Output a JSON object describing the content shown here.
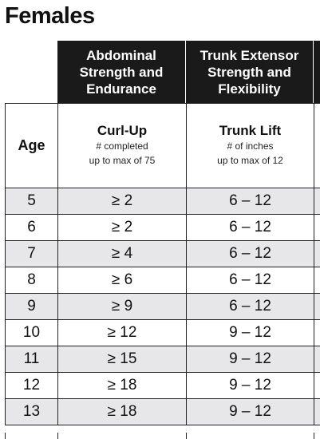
{
  "title": "Females",
  "columns": {
    "col1_header": "Abdominal Strength and Endurance",
    "col2_header": "Trunk Extensor Strength and Flexibility",
    "age_label": "Age",
    "col1_name": "Curl-Up",
    "col1_desc1": "# completed",
    "col1_desc2": "up to max of 75",
    "col2_name": "Trunk Lift",
    "col2_desc1": "# of inches",
    "col2_desc2": "up to max of 12"
  },
  "rows": [
    {
      "age": "5",
      "curl": "≥ 2",
      "trunk": "6 – 12"
    },
    {
      "age": "6",
      "curl": "≥ 2",
      "trunk": "6 – 12"
    },
    {
      "age": "7",
      "curl": "≥ 4",
      "trunk": "6 – 12"
    },
    {
      "age": "8",
      "curl": "≥ 6",
      "trunk": "6 – 12"
    },
    {
      "age": "9",
      "curl": "≥ 9",
      "trunk": "6 – 12"
    },
    {
      "age": "10",
      "curl": "≥ 12",
      "trunk": "9 – 12"
    },
    {
      "age": "11",
      "curl": "≥ 15",
      "trunk": "9 – 12"
    },
    {
      "age": "12",
      "curl": "≥ 18",
      "trunk": "9 – 12"
    },
    {
      "age": "13",
      "curl": "≥ 18",
      "trunk": "9 – 12"
    }
  ]
}
